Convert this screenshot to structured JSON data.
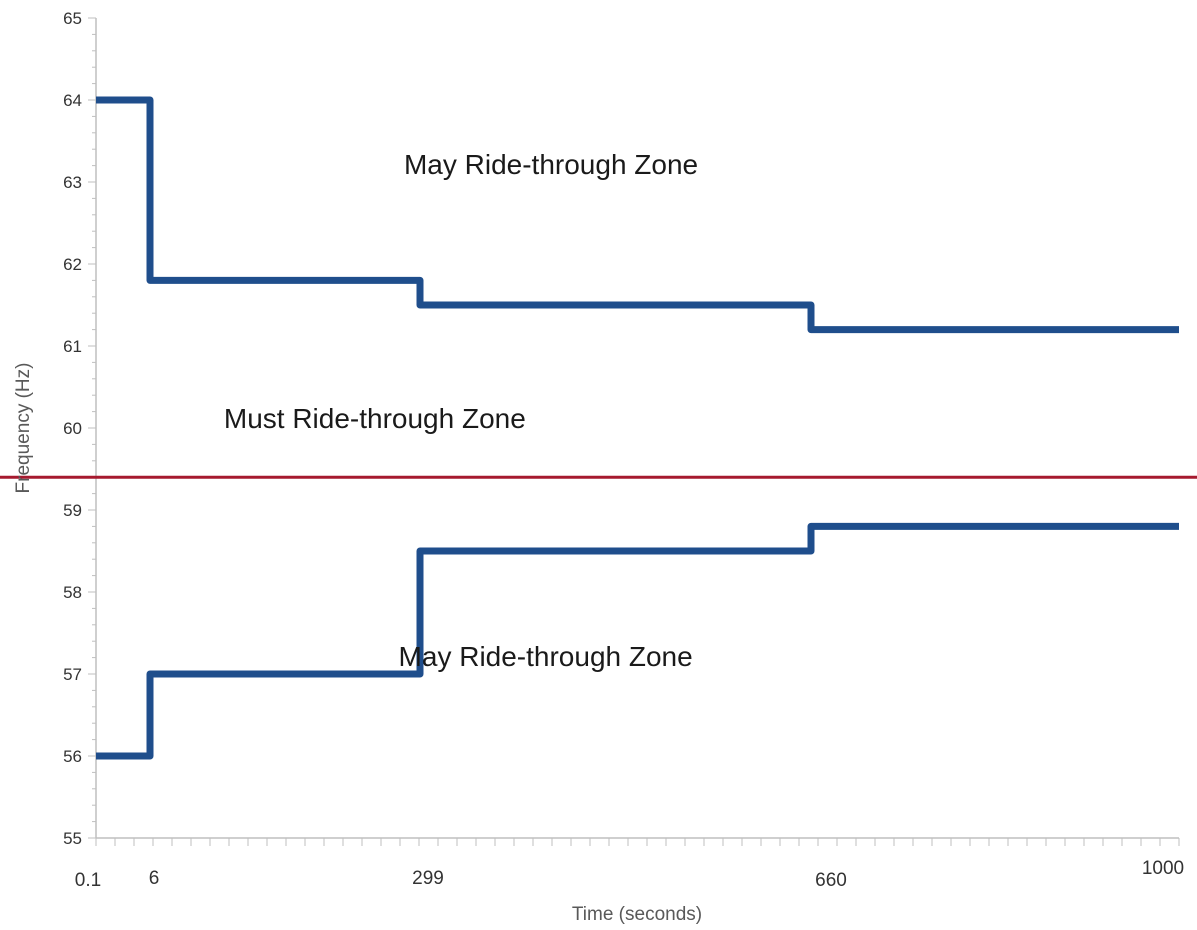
{
  "chart_data": {
    "type": "line",
    "xlabel": "Time (seconds)",
    "ylabel": "Frequency (Hz)",
    "ylim": [
      55,
      65
    ],
    "y_ticks": [
      "55",
      "56",
      "57",
      "58",
      "59",
      "60",
      "61",
      "62",
      "63",
      "64",
      "65"
    ],
    "x_ticks": [
      "0.1",
      "6",
      "299",
      "660",
      "1000"
    ],
    "grid": false,
    "series": [
      {
        "color": "#1f4e8c",
        "points": [
          [
            0.1,
            64
          ],
          [
            6,
            64
          ],
          [
            6,
            61.8
          ],
          [
            299,
            61.8
          ],
          [
            299,
            61.5
          ],
          [
            660,
            61.5
          ],
          [
            660,
            61.2
          ],
          [
            1000,
            61.2
          ]
        ]
      },
      {
        "color": "#1f4e8c",
        "points": [
          [
            0.1,
            56
          ],
          [
            6,
            56
          ],
          [
            6,
            57
          ],
          [
            299,
            57
          ],
          [
            299,
            58.5
          ],
          [
            660,
            58.5
          ],
          [
            660,
            58.8
          ],
          [
            1000,
            58.8
          ]
        ]
      }
    ],
    "reference_line": {
      "color": "#a6192e",
      "y": 59.4
    },
    "annotations": [
      {
        "text": "May Ride-through Zone",
        "x": 420,
        "y": 63.1
      },
      {
        "text": "Must Ride-through Zone",
        "x": 250,
        "y": 60.0
      },
      {
        "text": "May Ride-through Zone",
        "x": 415,
        "y": 57.1
      }
    ]
  }
}
